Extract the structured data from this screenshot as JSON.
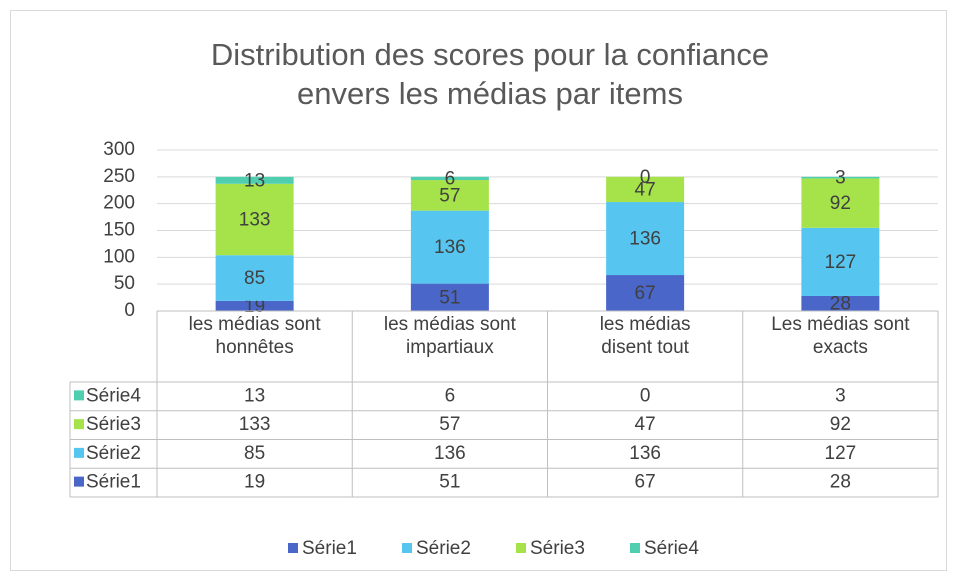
{
  "chart_data": {
    "type": "bar",
    "stacked": true,
    "title": "Distribution des scores pour la confiance\nenvers les médias par items",
    "categories": [
      "les médias sont\nhonnêtes",
      "les médias sont\nimpartiaux",
      "les médias\ndisent tout",
      "Les médias sont\nexacts"
    ],
    "series": [
      {
        "name": "Série1",
        "color": "#4a66c9",
        "values": [
          19,
          51,
          67,
          28
        ]
      },
      {
        "name": "Série2",
        "color": "#56c6f0",
        "values": [
          85,
          136,
          136,
          127
        ]
      },
      {
        "name": "Série3",
        "color": "#a6e34b",
        "values": [
          133,
          57,
          47,
          92
        ]
      },
      {
        "name": "Série4",
        "color": "#4fcfb0",
        "values": [
          13,
          6,
          0,
          3
        ]
      }
    ],
    "ylim": [
      0,
      300
    ],
    "yticks": [
      0,
      50,
      100,
      150,
      200,
      250,
      300
    ],
    "grid": true,
    "data_table": true,
    "legend": "bottom"
  }
}
